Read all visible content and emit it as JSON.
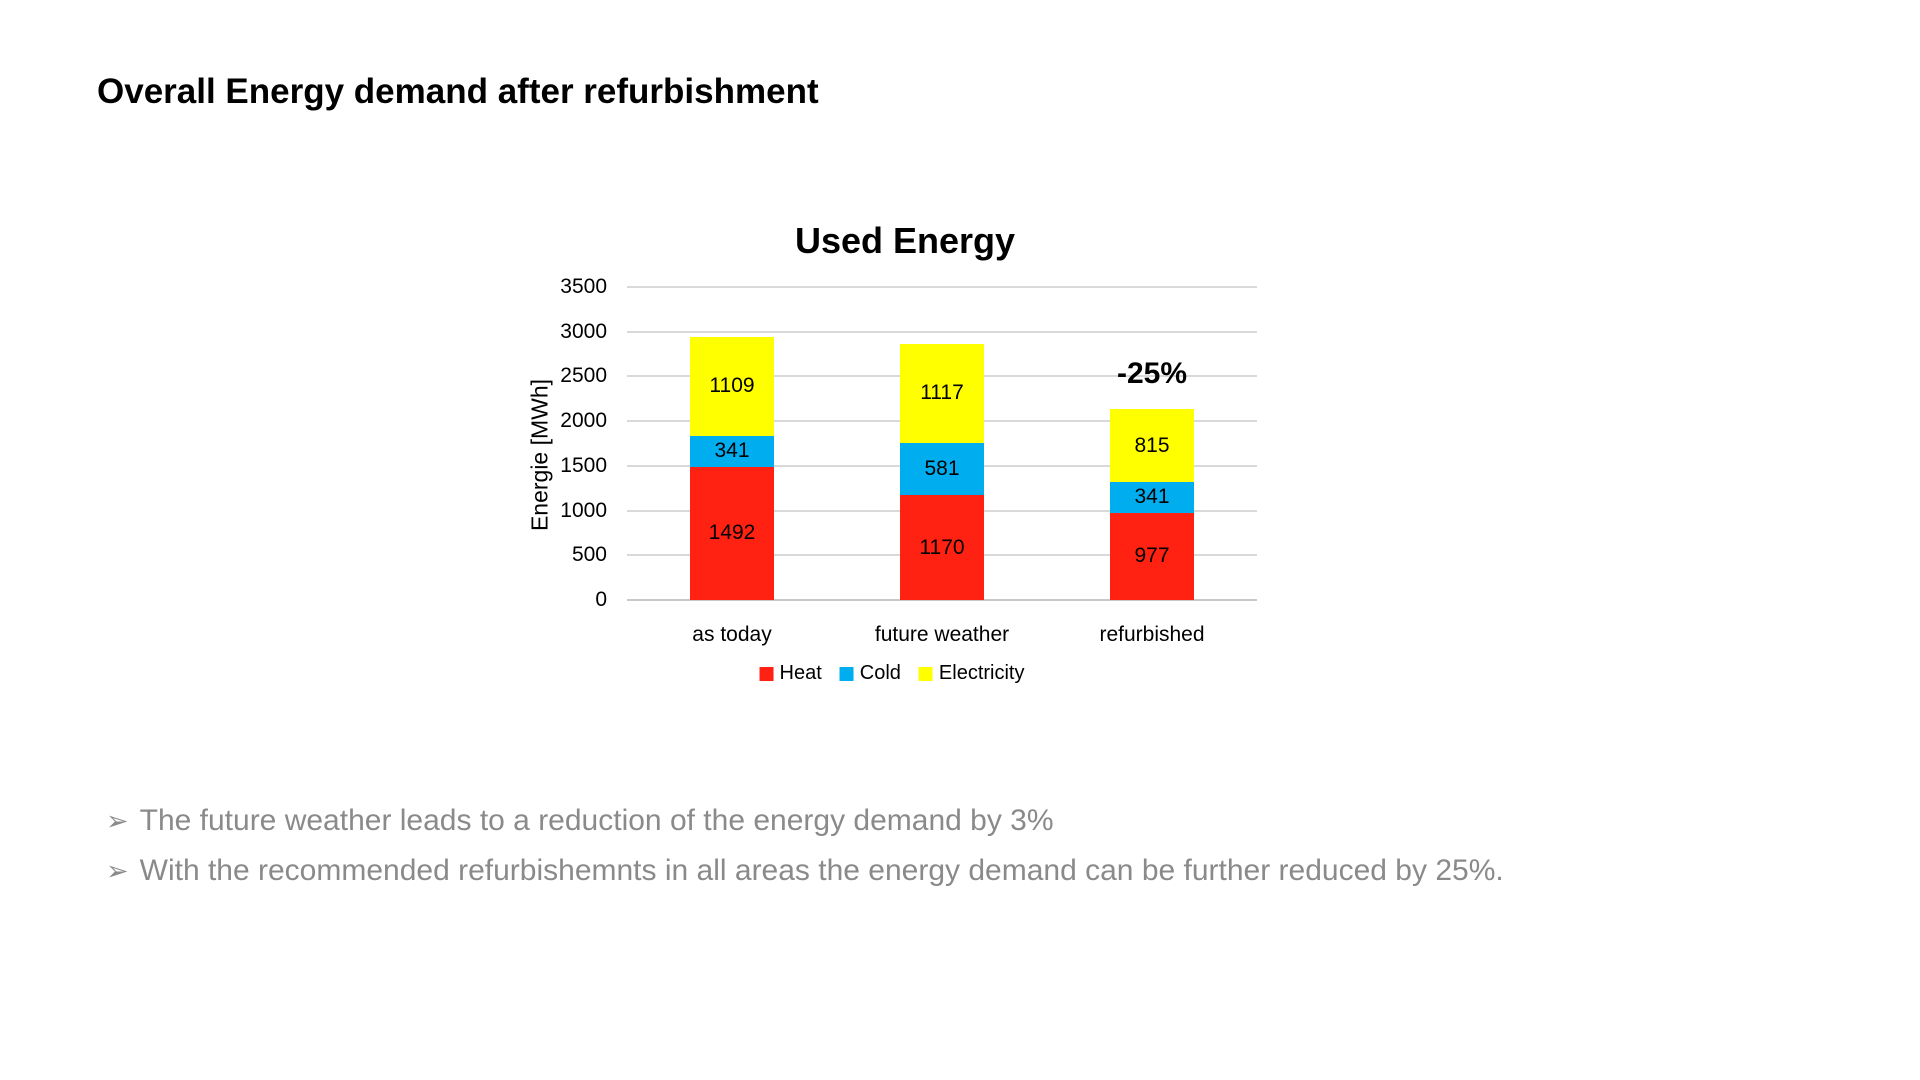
{
  "slide": {
    "title": "Overall Energy demand after refurbishment"
  },
  "chart_data": {
    "type": "bar",
    "stacked": true,
    "title": "Used Energy",
    "ylabel": "Energie [MWh]",
    "xlabel": "",
    "categories": [
      "as today",
      "future weather",
      "refurbished"
    ],
    "series": [
      {
        "name": "Heat",
        "color": "#ff2112",
        "values": [
          1492,
          1170,
          977
        ]
      },
      {
        "name": "Cold",
        "color": "#00aeef",
        "values": [
          341,
          581,
          341
        ]
      },
      {
        "name": "Electricity",
        "color": "#ffff00",
        "values": [
          1109,
          1117,
          815
        ]
      }
    ],
    "ylim": [
      0,
      3500
    ],
    "yticks": [
      0,
      500,
      1000,
      1500,
      2000,
      2500,
      3000,
      3500
    ],
    "grid": true,
    "legend_position": "bottom",
    "annotation": {
      "text": "-25%",
      "category": "refurbished",
      "category_index": 2
    }
  },
  "bullets": {
    "marker": "➢",
    "items": [
      "The future weather leads to a reduction of the energy demand by 3%",
      "With the recommended refurbishemnts in all areas the energy demand can be further reduced by 25%."
    ]
  },
  "colors": {
    "gridline": "#d9d9d9",
    "axis_line": "#c9c9c9",
    "bullet_text": "#8a8a8a"
  }
}
